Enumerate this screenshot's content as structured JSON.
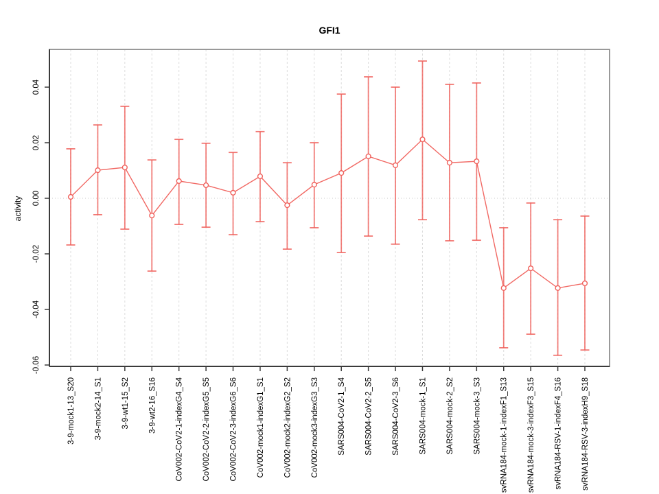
{
  "page": {
    "background": "#ffffff"
  },
  "chart_data": {
    "type": "line",
    "title": "GFI1",
    "xlabel": "",
    "ylabel": "activity",
    "legend_position": "none",
    "marker": "open-circle",
    "error_bars": true,
    "grid": {
      "vertical": "dashed line at every category",
      "horizontal": "dotted line at zero only"
    },
    "ylim": [
      -0.0605,
      0.0535
    ],
    "yticks": [
      {
        "value": 0.04,
        "label": "0.04"
      },
      {
        "value": 0.02,
        "label": "0.02"
      },
      {
        "value": 0.0,
        "label": "0.00"
      },
      {
        "value": -0.02,
        "label": "-0.02"
      },
      {
        "value": -0.04,
        "label": "-0.04"
      },
      {
        "value": -0.06,
        "label": "-0.06"
      }
    ],
    "colors": {
      "series": "#f0605b",
      "grid": "#dcdcdc",
      "zero_line": "#c9c9c9",
      "frame": "#999999",
      "axis": "#3a3a3a",
      "text": "#000000"
    },
    "categories": [
      "3-9-mock1-13_S20",
      "3-9-mock2-14_S1",
      "3-9-wt1-15_S2",
      "3-9-wt2-16_S16",
      "CoV002-CoV2-1-indexG4_S4",
      "CoV002-CoV2-2-indexG5_S5",
      "CoV002-CoV2-3-indexG6_S6",
      "CoV002-mock1-indexG1_S1",
      "CoV002-mock2-indexG2_S2",
      "CoV002-mock3-indexG3_S3",
      "SARS004-CoV2-1_S4",
      "SARS004-CoV2-2_S5",
      "SARS004-CoV2-3_S6",
      "SARS004-mock-1_S1",
      "SARS004-mock-2_S2",
      "SARS004-mock-3_S3",
      "svRNA184-mock-1-indexF1_S13",
      "svRNA184-mock-3-indexF3_S15",
      "svRNA184-RSV-1-indexF4_S16",
      "svRNA184-RSV-3-indexH9_S18"
    ],
    "series": [
      {
        "name": "GFI1",
        "values": [
          0.0005,
          0.0101,
          0.0111,
          -0.0062,
          0.0062,
          0.0047,
          0.002,
          0.0079,
          -0.0025,
          0.0049,
          0.0091,
          0.0151,
          0.0119,
          0.0212,
          0.0128,
          0.0133,
          -0.0323,
          -0.0252,
          -0.0323,
          -0.0306
        ],
        "lower": [
          -0.0168,
          -0.0059,
          -0.0111,
          -0.0262,
          -0.0094,
          -0.0104,
          -0.0131,
          -0.0084,
          -0.0183,
          -0.0106,
          -0.0195,
          -0.0136,
          -0.0165,
          -0.0077,
          -0.0153,
          -0.0151,
          -0.0538,
          -0.0489,
          -0.0565,
          -0.0546
        ],
        "upper": [
          0.0178,
          0.0264,
          0.0331,
          0.0138,
          0.0212,
          0.0198,
          0.0165,
          0.024,
          0.0128,
          0.02,
          0.0375,
          0.0437,
          0.04,
          0.0494,
          0.041,
          0.0415,
          -0.0106,
          -0.0017,
          -0.0077,
          -0.0064
        ]
      }
    ]
  }
}
